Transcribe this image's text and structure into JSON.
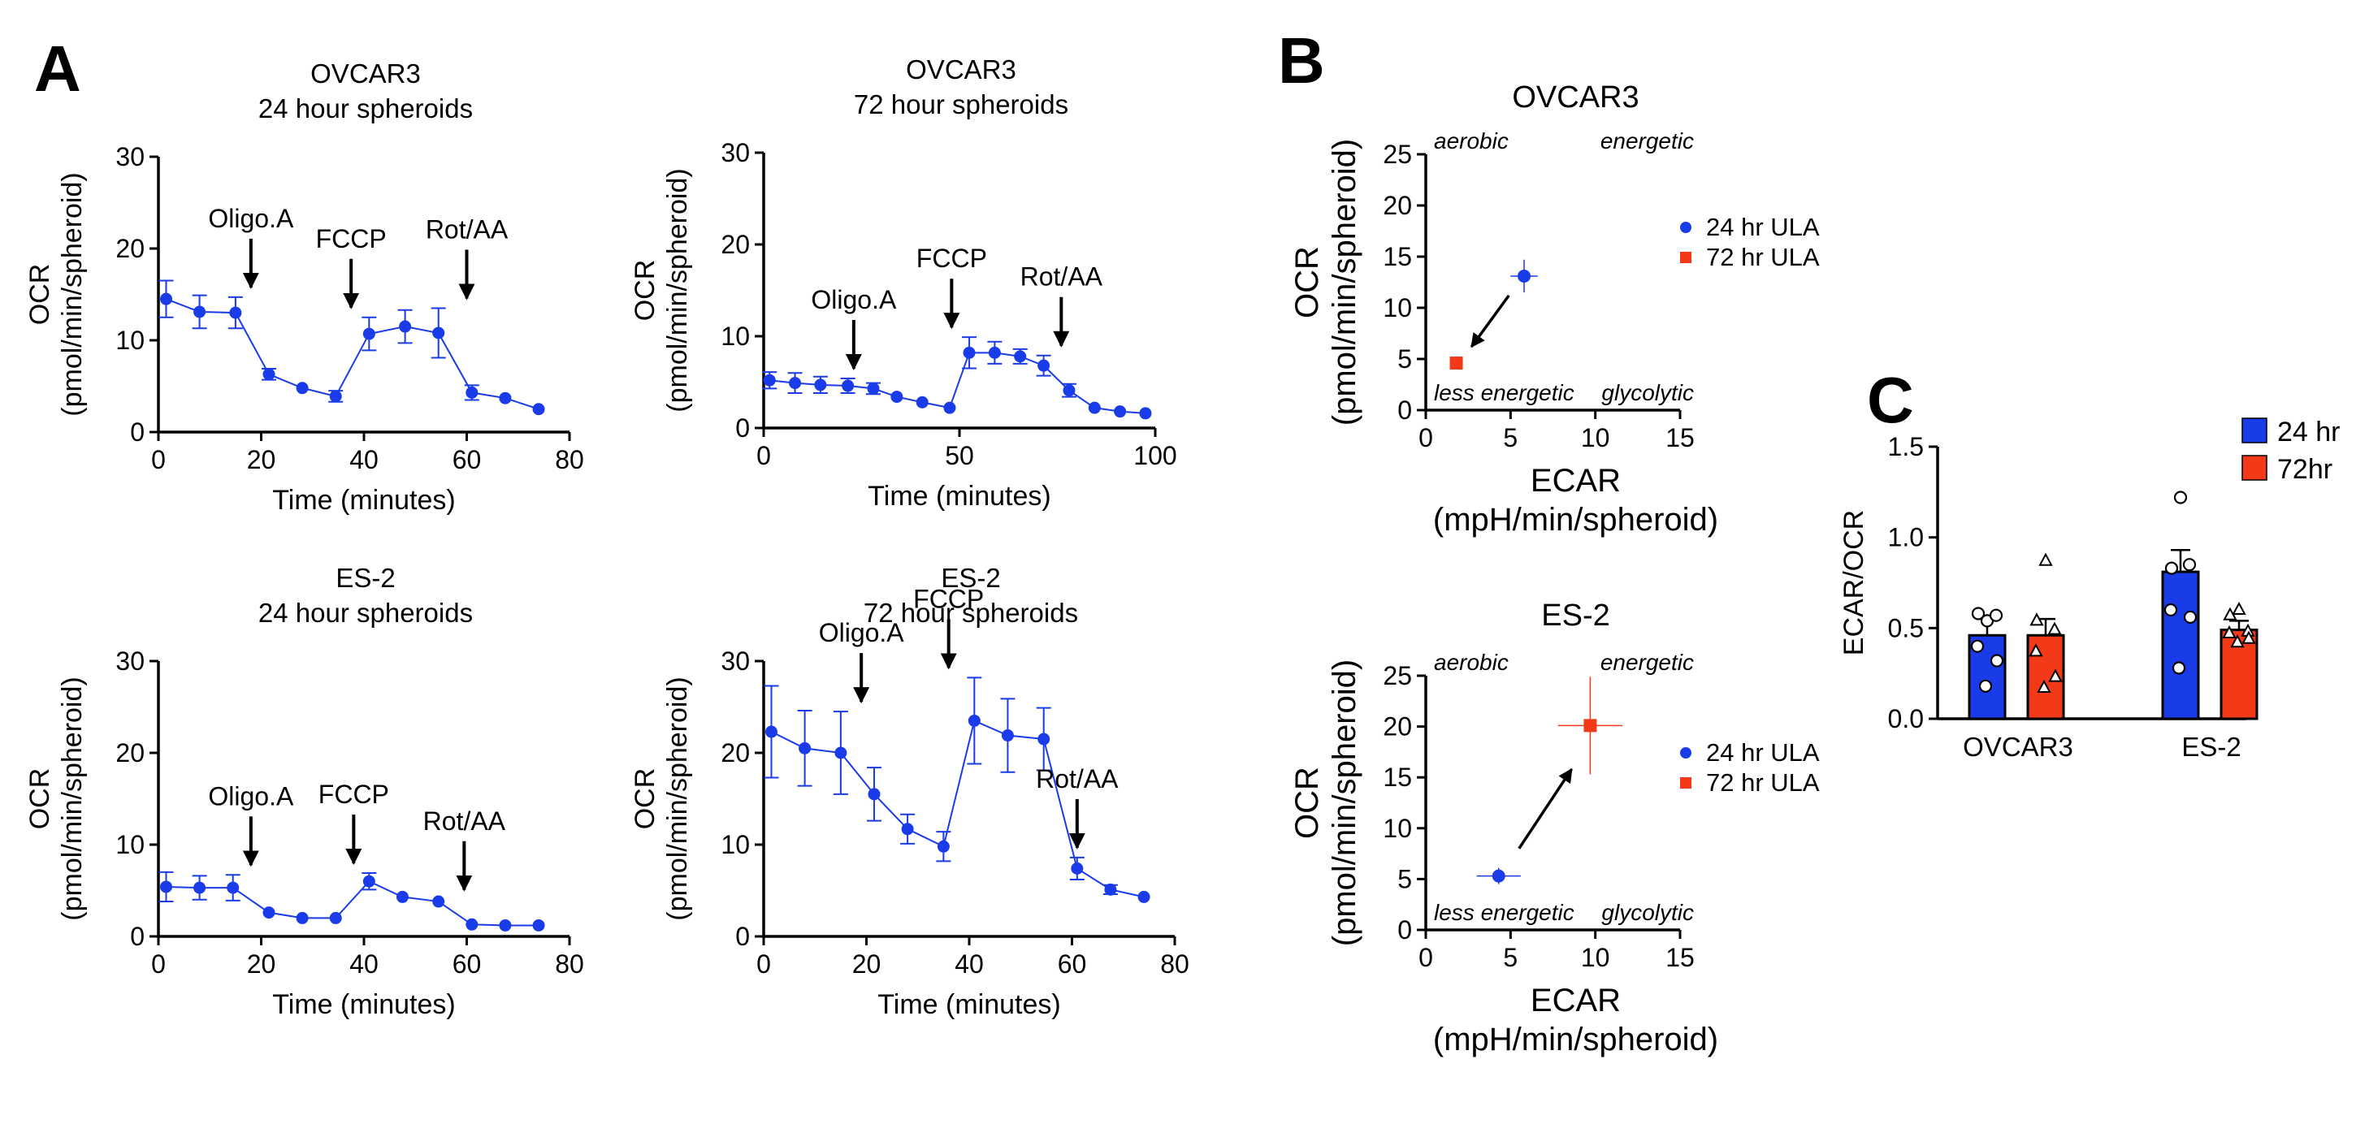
{
  "panel_letters": {
    "a": "A",
    "b": "B",
    "c": "C"
  },
  "colors": {
    "blue": "#1a3be8",
    "red": "#f23a18",
    "black": "#000000"
  },
  "chart_data": [
    {
      "id": "ovcar3-24h",
      "type": "line",
      "title": [
        "OVCAR3",
        "24 hour spheroids"
      ],
      "xlabel": "Time (minutes)",
      "ylabel": [
        "OCR",
        "(pmol/min/spheroid)"
      ],
      "xlim": [
        0,
        80
      ],
      "ylim": [
        0,
        30
      ],
      "xticks": [
        0,
        20,
        40,
        60,
        80
      ],
      "yticks": [
        0,
        10,
        20,
        30
      ],
      "series": [
        {
          "x": [
            1.5,
            8,
            15,
            21.5,
            28,
            34.5,
            41,
            48,
            54.5,
            61,
            67.5,
            74
          ],
          "y": [
            14.5,
            13.1,
            13.0,
            6.3,
            4.8,
            3.9,
            10.7,
            11.5,
            10.8,
            4.3,
            3.7,
            2.5
          ],
          "err": [
            2.0,
            1.8,
            1.7,
            0.6,
            0.2,
            0.6,
            1.8,
            1.8,
            2.7,
            0.8,
            0.3,
            0.2
          ]
        }
      ],
      "annotations": [
        {
          "label": "Oligo.A",
          "x": 18
        },
        {
          "label": "FCCP",
          "x": 37.5
        },
        {
          "label": "Rot/AA",
          "x": 60
        }
      ]
    },
    {
      "id": "ovcar3-72h",
      "type": "line",
      "title": [
        "OVCAR3",
        "72 hour spheroids"
      ],
      "xlabel": "Time (minutes)",
      "ylabel": [
        "OCR",
        "(pmol/min/spheroid)"
      ],
      "xlim": [
        0,
        100
      ],
      "ylim": [
        0,
        30
      ],
      "xticks": [
        0,
        50,
        100
      ],
      "yticks": [
        0,
        10,
        20,
        30
      ],
      "series": [
        {
          "x": [
            1.5,
            8,
            14.5,
            21.5,
            28,
            34,
            40.5,
            47.5,
            52.5,
            59,
            65.5,
            71.5,
            78,
            84.5,
            91,
            97.5
          ],
          "y": [
            5.2,
            4.9,
            4.7,
            4.6,
            4.3,
            3.4,
            2.8,
            2.2,
            8.2,
            8.2,
            7.8,
            6.8,
            4.1,
            2.2,
            1.8,
            1.6
          ],
          "err": [
            0.9,
            1.1,
            0.9,
            0.8,
            0.6,
            0.2,
            0.2,
            0.2,
            1.7,
            1.2,
            0.8,
            1.1,
            0.7,
            0.2,
            0.2,
            0.2
          ]
        }
      ],
      "annotations": [
        {
          "label": "Oligo.A",
          "x": 23
        },
        {
          "label": "FCCP",
          "x": 48
        },
        {
          "label": "Rot/AA",
          "x": 76
        }
      ]
    },
    {
      "id": "es2-24h",
      "type": "line",
      "title": [
        "ES-2",
        "24 hour spheroids"
      ],
      "xlabel": "Time (minutes)",
      "ylabel": [
        "OCR",
        "(pmol/min/spheroid)"
      ],
      "xlim": [
        0,
        80
      ],
      "ylim": [
        0,
        30
      ],
      "xticks": [
        0,
        20,
        40,
        60,
        80
      ],
      "yticks": [
        0,
        10,
        20,
        30
      ],
      "series": [
        {
          "x": [
            1.5,
            8,
            14.5,
            21.5,
            28,
            34.5,
            41,
            47.5,
            54.5,
            61,
            67.5,
            74
          ],
          "y": [
            5.4,
            5.3,
            5.3,
            2.6,
            2.0,
            2.0,
            6.0,
            4.3,
            3.8,
            1.3,
            1.2,
            1.2
          ],
          "err": [
            1.6,
            1.3,
            1.4,
            0.3,
            0.2,
            0.2,
            0.9,
            0.2,
            0.2,
            0.2,
            0.2,
            0.2
          ]
        }
      ],
      "annotations": [
        {
          "label": "Oligo.A",
          "x": 18
        },
        {
          "label": "FCCP",
          "x": 38
        },
        {
          "label": "Rot/AA",
          "x": 59.5
        }
      ]
    },
    {
      "id": "es2-72h",
      "type": "line",
      "title": [
        "ES-2",
        "72 hour spheroids"
      ],
      "xlabel": "Time (minutes)",
      "ylabel": [
        "OCR",
        "(pmol/min/spheroid)"
      ],
      "xlim": [
        0,
        80
      ],
      "ylim": [
        0,
        30
      ],
      "xticks": [
        0,
        20,
        40,
        60,
        80
      ],
      "yticks": [
        0,
        10,
        20,
        30
      ],
      "series": [
        {
          "x": [
            1.5,
            8,
            15,
            21.5,
            28,
            35,
            41,
            47.5,
            54.5,
            61,
            67.5,
            74
          ],
          "y": [
            22.3,
            20.5,
            20.0,
            15.5,
            11.7,
            9.8,
            23.5,
            21.9,
            21.5,
            7.4,
            5.1,
            4.3
          ],
          "err": [
            5.0,
            4.1,
            4.5,
            2.9,
            1.6,
            1.6,
            4.7,
            4.0,
            3.4,
            1.2,
            0.5,
            0.3
          ]
        }
      ],
      "annotations": [
        {
          "label": "Oligo.A",
          "x": 19
        },
        {
          "label": "FCCP",
          "x": 36
        },
        {
          "label": "Rot/AA",
          "x": 61
        }
      ]
    },
    {
      "id": "ovcar3-energy-map",
      "type": "scatter",
      "title": "OVCAR3",
      "xlabel": [
        "ECAR",
        "(mpH/min/spheroid)"
      ],
      "ylabel": [
        "OCR",
        "(pmol/min/spheroid)"
      ],
      "xlim": [
        0,
        15
      ],
      "ylim": [
        0,
        25
      ],
      "xticks": [
        0,
        5,
        10,
        15
      ],
      "yticks": [
        0,
        5,
        10,
        15,
        20,
        25
      ],
      "quadrant_labels": {
        "top_left": "aerobic",
        "top_right": "energetic",
        "bottom_left": "less energetic",
        "bottom_right": "glycolytic"
      },
      "series": [
        {
          "name": "24 hr ULA",
          "marker": "circle",
          "x": 5.8,
          "y": 13.1,
          "xerr": 0.8,
          "yerr": 1.6
        },
        {
          "name": "72 hr ULA",
          "marker": "square",
          "x": 1.8,
          "y": 4.6,
          "xerr": 0.3,
          "yerr": 0.3
        }
      ],
      "arrow": {
        "from": [
          4.9,
          11.2
        ],
        "to": [
          2.7,
          6.2
        ]
      }
    },
    {
      "id": "es2-energy-map",
      "type": "scatter",
      "title": "ES-2",
      "xlabel": [
        "ECAR",
        "(mpH/min/spheroid)"
      ],
      "ylabel": [
        "OCR",
        "(pmol/min/spheroid)"
      ],
      "xlim": [
        0,
        15
      ],
      "ylim": [
        0,
        25
      ],
      "xticks": [
        0,
        5,
        10,
        15
      ],
      "yticks": [
        0,
        5,
        10,
        15,
        20,
        25
      ],
      "quadrant_labels": {
        "top_left": "aerobic",
        "top_right": "energetic",
        "bottom_left": "less energetic",
        "bottom_right": "glycolytic"
      },
      "series": [
        {
          "name": "24 hr ULA",
          "marker": "circle",
          "x": 4.3,
          "y": 5.3,
          "xerr": 1.3,
          "yerr": 0.8
        },
        {
          "name": "72 hr ULA",
          "marker": "square",
          "x": 9.7,
          "y": 20.1,
          "xerr": 1.9,
          "yerr": 4.8
        }
      ],
      "arrow": {
        "from": [
          5.5,
          8.0
        ],
        "to": [
          8.6,
          15.8
        ]
      }
    },
    {
      "id": "ecar-ocr-ratio",
      "type": "bar",
      "ylabel": "ECAR/OCR",
      "ylim": [
        0,
        1.5
      ],
      "yticks": [
        0.0,
        0.5,
        1.0,
        1.5
      ],
      "categories": [
        "OVCAR3",
        "ES-2"
      ],
      "series": [
        {
          "name": "24 hr",
          "marker": "circle",
          "values": [
            0.46,
            0.81
          ],
          "err": [
            0.09,
            0.12
          ],
          "points": [
            [
              0.54,
              0.58,
              0.57,
              0.4,
              0.32,
              0.18
            ],
            [
              1.22,
              0.83,
              0.85,
              0.6,
              0.56,
              0.28
            ]
          ]
        },
        {
          "name": "72hr",
          "marker": "triangle",
          "values": [
            0.46,
            0.49
          ],
          "err": [
            0.09,
            0.05
          ],
          "points": [
            [
              0.87,
              0.54,
              0.49,
              0.37,
              0.23,
              0.17
            ],
            [
              0.6,
              0.57,
              0.48,
              0.47,
              0.44,
              0.42
            ]
          ]
        }
      ]
    }
  ]
}
